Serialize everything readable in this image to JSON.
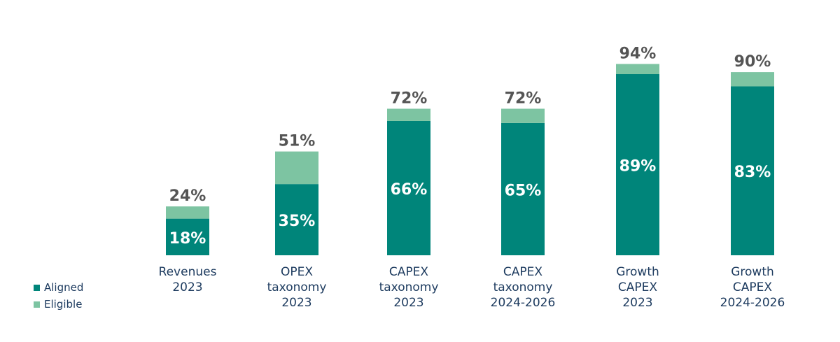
{
  "chart_data": {
    "type": "bar",
    "stacked": true,
    "categories": [
      [
        "Revenues",
        "2023"
      ],
      [
        "OPEX",
        "taxonomy",
        "2023"
      ],
      [
        "CAPEX",
        "taxonomy",
        "2023"
      ],
      [
        "CAPEX",
        "taxonomy",
        "2024-2026"
      ],
      [
        "Growth",
        "CAPEX",
        "2023"
      ],
      [
        "Growth",
        "CAPEX",
        "2024-2026"
      ]
    ],
    "series": [
      {
        "name": "Aligned",
        "color": "#00857a",
        "values": [
          18,
          35,
          66,
          65,
          89,
          83
        ],
        "labels": [
          "18%",
          "35%",
          "66%",
          "65%",
          "89%",
          "83%"
        ]
      },
      {
        "name": "Eligible",
        "color": "#7dc4a2",
        "values": [
          6,
          16,
          6,
          7,
          5,
          7
        ]
      }
    ],
    "totals": [
      24,
      51,
      72,
      72,
      94,
      90
    ],
    "total_labels": [
      "24%",
      "51%",
      "72%",
      "72%",
      "94%",
      "90%"
    ],
    "ylim": [
      0,
      100
    ],
    "grid": false,
    "legend_position": "bottom-left"
  },
  "legend": [
    {
      "label": "Aligned",
      "color": "#00857a"
    },
    {
      "label": "Eligible",
      "color": "#7dc4a2"
    }
  ]
}
